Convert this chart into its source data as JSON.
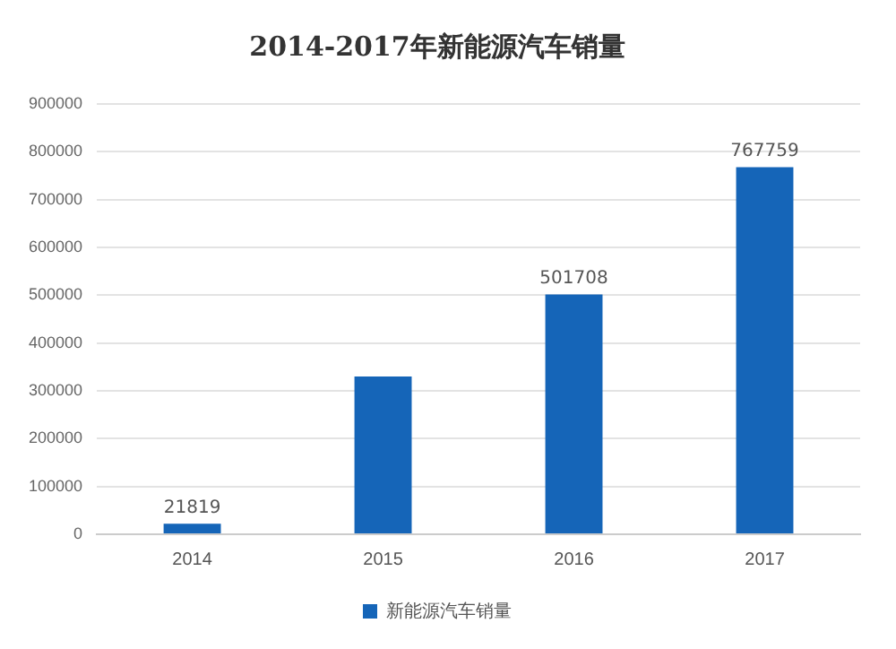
{
  "chart_data": {
    "type": "bar",
    "title": "2014-2017年新能源汽车销量",
    "categories": [
      "2014",
      "2015",
      "2016",
      "2017"
    ],
    "series": [
      {
        "name": "新能源汽车销量",
        "color": "#1565b8",
        "values": [
          21819,
          330000,
          501708,
          767759
        ],
        "value_labels": [
          "21819",
          null,
          "501708",
          "767759"
        ]
      }
    ],
    "ylim": [
      0,
      900000
    ],
    "yticks": [
      0,
      100000,
      200000,
      300000,
      400000,
      500000,
      600000,
      700000,
      800000,
      900000
    ],
    "grid": "y",
    "legend": "bottom"
  }
}
